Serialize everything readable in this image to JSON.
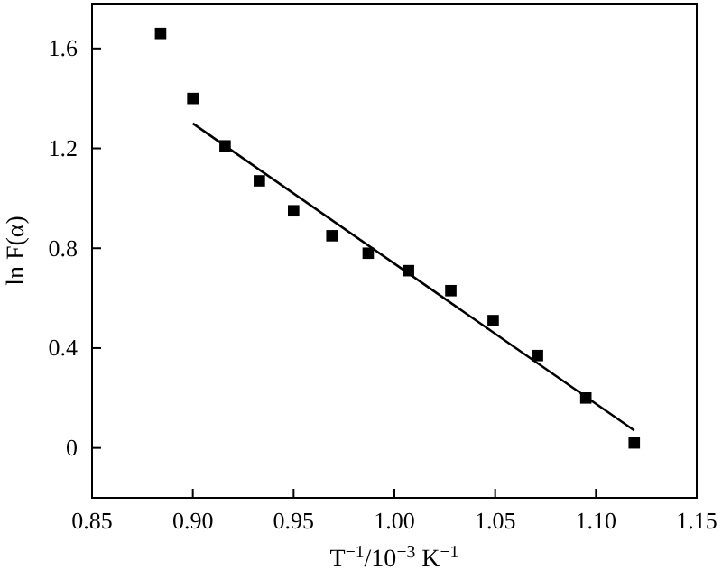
{
  "chart_data": {
    "type": "scatter",
    "xlabel": "T$^{−1}$/10$^{−3}$ K$^{−1}$",
    "ylabel": "ln F(α)",
    "xlim": [
      0.85,
      1.15
    ],
    "ylim": [
      -0.2,
      1.78
    ],
    "xticks": [
      {
        "value": 0.85,
        "label": "0.85"
      },
      {
        "value": 0.9,
        "label": "0.90"
      },
      {
        "value": 0.95,
        "label": "0.95"
      },
      {
        "value": 1.0,
        "label": "1.00"
      },
      {
        "value": 1.05,
        "label": "1.05"
      },
      {
        "value": 1.1,
        "label": "1.10"
      },
      {
        "value": 1.15,
        "label": "1.15"
      }
    ],
    "yticks": [
      0,
      0.4,
      0.8,
      1.2,
      1.6
    ],
    "grid": false,
    "marker": "square",
    "series": [
      {
        "color": "#000000",
        "x": [
          0.884,
          0.9,
          0.916,
          0.933,
          0.95,
          0.969,
          0.987,
          1.007,
          1.028,
          1.049,
          1.071,
          1.095,
          1.119
        ],
        "values": [
          1.66,
          1.4,
          1.21,
          1.07,
          0.95,
          0.85,
          0.78,
          0.71,
          0.63,
          0.51,
          0.37,
          0.2,
          0.02
        ]
      },
      {
        "type": "line",
        "color": "#000000",
        "line_style": "solid",
        "marker": "none",
        "x": [
          0.9,
          1.119
        ],
        "values": [
          1.3,
          0.07
        ]
      }
    ]
  }
}
